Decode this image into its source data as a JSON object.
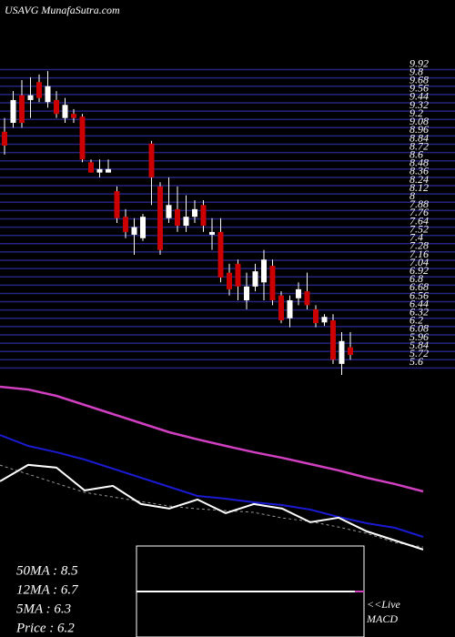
{
  "header": {
    "title": "USAVG MunafaSutra.com"
  },
  "chart_data": [
    {
      "type": "candlestick",
      "open": [
        9.02,
        9.15,
        9.55,
        9.48,
        9.74,
        9.45,
        9.48,
        9.22,
        9.28,
        9.24,
        8.58,
        8.43,
        8.43,
        8.16,
        7.79,
        7.53,
        7.48,
        8.85,
        8.23,
        7.77,
        7.9,
        7.66,
        7.79,
        7.96,
        7.53,
        7.57,
        6.98,
        7.11,
        6.58,
        6.78,
        6.84,
        7.08,
        6.65,
        6.32,
        6.61,
        6.71,
        6.45,
        6.26,
        6.29,
        5.66,
        5.9
      ],
      "high": [
        9.22,
        9.61,
        9.77,
        9.81,
        9.85,
        9.9,
        9.61,
        9.51,
        9.35,
        9.28,
        8.62,
        8.62,
        8.62,
        8.23,
        7.9,
        7.77,
        7.83,
        8.89,
        8.29,
        8.36,
        8.23,
        8.1,
        8.03,
        8.03,
        7.77,
        7.77,
        7.11,
        7.17,
        6.98,
        7.11,
        7.31,
        7.17,
        6.71,
        6.65,
        6.84,
        6.98,
        6.51,
        6.38,
        6.38,
        6.12,
        6.12
      ],
      "low": [
        8.69,
        9.08,
        9.08,
        9.22,
        9.45,
        9.37,
        9.22,
        9.15,
        9.15,
        8.58,
        8.43,
        8.36,
        8.43,
        7.7,
        7.48,
        7.24,
        7.44,
        7.96,
        7.24,
        7.7,
        7.57,
        7.57,
        7.7,
        7.57,
        7.31,
        6.84,
        6.65,
        6.58,
        6.45,
        6.71,
        6.58,
        6.51,
        6.25,
        6.19,
        6.51,
        6.45,
        6.19,
        6.21,
        5.66,
        5.5,
        5.72
      ],
      "close": [
        8.82,
        9.48,
        9.15,
        9.55,
        9.51,
        9.68,
        9.28,
        9.41,
        9.22,
        8.62,
        8.43,
        8.48,
        8.48,
        7.77,
        7.57,
        7.64,
        7.79,
        8.36,
        7.31,
        7.96,
        7.66,
        7.79,
        7.9,
        7.66,
        7.57,
        6.91,
        6.74,
        6.78,
        6.78,
        7.0,
        7.17,
        6.58,
        6.29,
        6.58,
        6.74,
        6.51,
        6.25,
        6.34,
        5.72,
        5.99,
        5.79
      ],
      "up_color": "#ffffff",
      "down_color": "#cc0000",
      "grid_color": "#24247e",
      "ylim": [
        5.5,
        9.98
      ],
      "yticks": [
        9.92,
        9.8,
        9.68,
        9.56,
        9.44,
        9.32,
        9.2,
        9.08,
        8.96,
        8.84,
        8.72,
        8.6,
        8.48,
        8.36,
        8.24,
        8.12,
        8.0,
        7.88,
        7.76,
        7.64,
        7.52,
        7.4,
        7.28,
        7.16,
        7.04,
        6.92,
        6.8,
        6.68,
        6.56,
        6.44,
        6.32,
        6.2,
        6.08,
        5.96,
        5.84,
        5.72,
        5.6
      ]
    },
    {
      "type": "line",
      "ylim": [
        5.98,
        12.82
      ],
      "series": [
        {
          "label": "50MA : 8.5",
          "color": "#d040c0",
          "width": 2.5,
          "dash": false,
          "values": [
            12.64,
            12.53,
            12.28,
            11.92,
            11.56,
            11.2,
            10.84,
            10.56,
            10.3,
            10.05,
            9.83,
            9.58,
            9.33,
            9.04,
            8.79,
            8.5
          ]
        },
        {
          "label": "12MA : 6.7",
          "color": "#1a1ad0",
          "width": 2,
          "dash": false,
          "values": [
            10.73,
            10.3,
            10.05,
            9.76,
            9.4,
            9.04,
            8.68,
            8.32,
            8.21,
            8.07,
            7.96,
            7.78,
            7.49,
            7.24,
            7.06,
            6.7
          ]
        },
        {
          "label": "5MA : 6.3",
          "color": "#999999",
          "width": 1,
          "dash": true,
          "values": [
            9.54,
            9.18,
            8.82,
            8.46,
            8.28,
            8.1,
            7.92,
            7.81,
            7.74,
            7.67,
            7.45,
            7.31,
            7.09,
            6.84,
            6.48,
            6.3
          ]
        },
        {
          "label": "Price   : 6.2",
          "color": "#ffffff",
          "width": 2,
          "dash": false,
          "values": [
            8.9,
            9.55,
            9.44,
            8.54,
            8.72,
            8.0,
            7.82,
            8.18,
            7.64,
            8.0,
            7.82,
            7.28,
            7.46,
            6.92,
            6.56,
            6.2
          ]
        }
      ]
    }
  ],
  "macd": {
    "live": "<<Live",
    "label": "MACD"
  }
}
